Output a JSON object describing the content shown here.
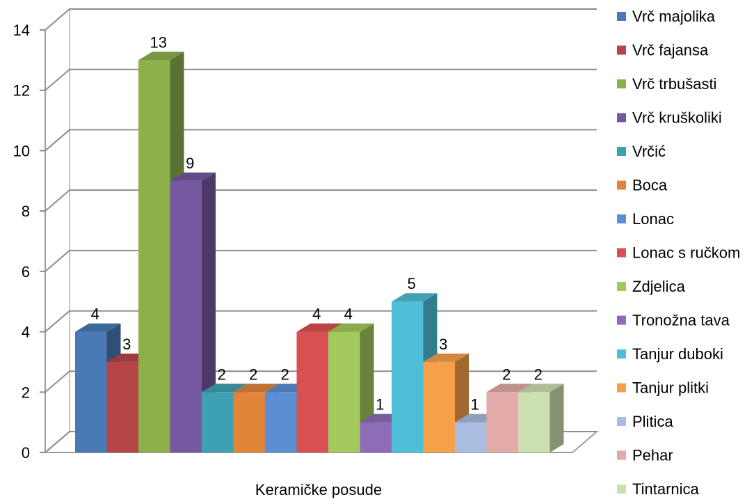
{
  "chart_data": {
    "type": "bar",
    "title": "",
    "xlabel": "Keramičke posude",
    "ylabel": "",
    "ylim": [
      0,
      14
    ],
    "yticks": [
      0,
      2,
      4,
      6,
      8,
      10,
      12,
      14
    ],
    "grid": true,
    "legend_position": "right",
    "series": [
      {
        "name": "Vrč majolika",
        "value": 4,
        "color": "#4a7ab5"
      },
      {
        "name": "Vrč fajansa",
        "value": 3,
        "color": "#b84545"
      },
      {
        "name": "Vrč trbušasti",
        "value": 13,
        "color": "#8db04a"
      },
      {
        "name": "Vrč kruškoliki",
        "value": 9,
        "color": "#7558a0"
      },
      {
        "name": "Vrčić",
        "value": 2,
        "color": "#3ea1b3"
      },
      {
        "name": "Boca",
        "value": 2,
        "color": "#e0853a"
      },
      {
        "name": "Lonac",
        "value": 2,
        "color": "#5a8fd4"
      },
      {
        "name": "Lonac s ručkom",
        "value": 4,
        "color": "#d95050"
      },
      {
        "name": "Zdjelica",
        "value": 4,
        "color": "#a3c95c"
      },
      {
        "name": "Tronožna tava",
        "value": 1,
        "color": "#8e6cb8"
      },
      {
        "name": "Tanjur duboki",
        "value": 5,
        "color": "#4dbfd6"
      },
      {
        "name": "Tanjur plitki",
        "value": 3,
        "color": "#f7a04a"
      },
      {
        "name": "Plitica",
        "value": 1,
        "color": "#a8bde0"
      },
      {
        "name": "Pehar",
        "value": 2,
        "color": "#e3aaa8"
      },
      {
        "name": "Tintarnica",
        "value": 2,
        "color": "#cde0b0"
      }
    ]
  }
}
